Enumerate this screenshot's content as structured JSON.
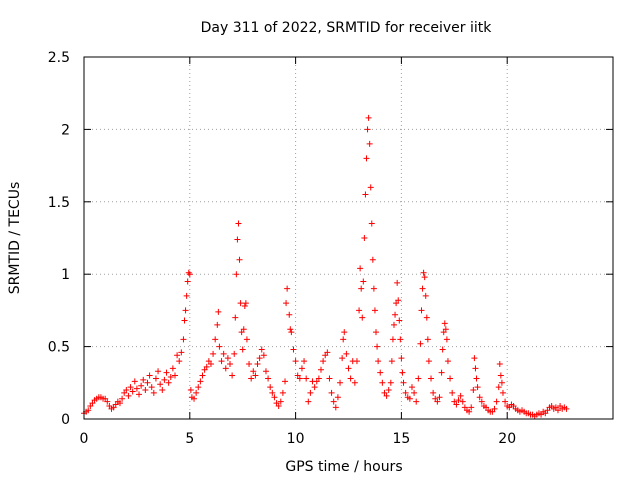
{
  "chart_data": {
    "type": "scatter",
    "title": "Day 311 of 2022, SRMTID for receiver iitk",
    "xlabel": "GPS time / hours",
    "ylabel": "SRMTID / TECUs",
    "xlim": [
      0,
      25
    ],
    "ylim": [
      0,
      2.5
    ],
    "xticks": [
      0,
      5,
      10,
      15,
      20
    ],
    "xtick_labels": [
      "0",
      "5",
      "10",
      "15",
      "20"
    ],
    "yticks": [
      0,
      0.5,
      1,
      1.5,
      2,
      2.5
    ],
    "ytick_labels": [
      "0",
      "0.5",
      "1",
      "1.5",
      "2",
      "2.5"
    ],
    "grid": true,
    "marker": "+",
    "marker_color": "#ff0000",
    "series": [
      {
        "name": "SRMTID",
        "points": [
          [
            0.0,
            0.04
          ],
          [
            0.1,
            0.05
          ],
          [
            0.2,
            0.06
          ],
          [
            0.3,
            0.09
          ],
          [
            0.4,
            0.11
          ],
          [
            0.5,
            0.13
          ],
          [
            0.6,
            0.14
          ],
          [
            0.7,
            0.15
          ],
          [
            0.8,
            0.15
          ],
          [
            0.9,
            0.14
          ],
          [
            1.0,
            0.14
          ],
          [
            1.1,
            0.12
          ],
          [
            1.2,
            0.09
          ],
          [
            1.3,
            0.07
          ],
          [
            1.4,
            0.08
          ],
          [
            1.5,
            0.1
          ],
          [
            1.6,
            0.12
          ],
          [
            1.7,
            0.11
          ],
          [
            1.8,
            0.14
          ],
          [
            1.9,
            0.18
          ],
          [
            2.0,
            0.2
          ],
          [
            2.1,
            0.16
          ],
          [
            2.2,
            0.22
          ],
          [
            2.3,
            0.19
          ],
          [
            2.4,
            0.26
          ],
          [
            2.5,
            0.21
          ],
          [
            2.6,
            0.17
          ],
          [
            2.7,
            0.23
          ],
          [
            2.8,
            0.27
          ],
          [
            2.9,
            0.2
          ],
          [
            3.0,
            0.25
          ],
          [
            3.1,
            0.3
          ],
          [
            3.2,
            0.22
          ],
          [
            3.3,
            0.18
          ],
          [
            3.4,
            0.28
          ],
          [
            3.5,
            0.33
          ],
          [
            3.6,
            0.24
          ],
          [
            3.7,
            0.2
          ],
          [
            3.8,
            0.27
          ],
          [
            3.9,
            0.32
          ],
          [
            4.0,
            0.25
          ],
          [
            4.1,
            0.29
          ],
          [
            4.2,
            0.35
          ],
          [
            4.3,
            0.3
          ],
          [
            4.4,
            0.44
          ],
          [
            4.5,
            0.4
          ],
          [
            4.6,
            0.46
          ],
          [
            4.7,
            0.55
          ],
          [
            4.75,
            0.68
          ],
          [
            4.8,
            0.75
          ],
          [
            4.85,
            0.85
          ],
          [
            4.9,
            0.95
          ],
          [
            4.95,
            1.01
          ],
          [
            5.0,
            1.0
          ],
          [
            5.05,
            0.2
          ],
          [
            5.1,
            0.15
          ],
          [
            5.2,
            0.14
          ],
          [
            5.3,
            0.18
          ],
          [
            5.4,
            0.22
          ],
          [
            5.5,
            0.26
          ],
          [
            5.6,
            0.3
          ],
          [
            5.7,
            0.34
          ],
          [
            5.8,
            0.36
          ],
          [
            5.9,
            0.4
          ],
          [
            6.0,
            0.38
          ],
          [
            6.1,
            0.45
          ],
          [
            6.2,
            0.55
          ],
          [
            6.3,
            0.65
          ],
          [
            6.35,
            0.74
          ],
          [
            6.4,
            0.5
          ],
          [
            6.5,
            0.4
          ],
          [
            6.6,
            0.45
          ],
          [
            6.7,
            0.35
          ],
          [
            6.8,
            0.42
          ],
          [
            6.9,
            0.38
          ],
          [
            7.0,
            0.3
          ],
          [
            7.1,
            0.45
          ],
          [
            7.15,
            0.7
          ],
          [
            7.2,
            1.0
          ],
          [
            7.25,
            1.24
          ],
          [
            7.3,
            1.35
          ],
          [
            7.35,
            1.1
          ],
          [
            7.4,
            0.8
          ],
          [
            7.45,
            0.6
          ],
          [
            7.5,
            0.48
          ],
          [
            7.55,
            0.62
          ],
          [
            7.6,
            0.78
          ],
          [
            7.65,
            0.8
          ],
          [
            7.7,
            0.55
          ],
          [
            7.8,
            0.38
          ],
          [
            7.9,
            0.28
          ],
          [
            8.0,
            0.33
          ],
          [
            8.1,
            0.3
          ],
          [
            8.2,
            0.38
          ],
          [
            8.3,
            0.42
          ],
          [
            8.4,
            0.48
          ],
          [
            8.5,
            0.44
          ],
          [
            8.6,
            0.33
          ],
          [
            8.7,
            0.28
          ],
          [
            8.8,
            0.22
          ],
          [
            8.9,
            0.18
          ],
          [
            9.0,
            0.15
          ],
          [
            9.1,
            0.11
          ],
          [
            9.2,
            0.09
          ],
          [
            9.3,
            0.12
          ],
          [
            9.4,
            0.18
          ],
          [
            9.5,
            0.26
          ],
          [
            9.55,
            0.8
          ],
          [
            9.6,
            0.9
          ],
          [
            9.7,
            0.72
          ],
          [
            9.75,
            0.62
          ],
          [
            9.8,
            0.6
          ],
          [
            9.9,
            0.48
          ],
          [
            10.0,
            0.4
          ],
          [
            10.1,
            0.3
          ],
          [
            10.2,
            0.28
          ],
          [
            10.3,
            0.35
          ],
          [
            10.4,
            0.4
          ],
          [
            10.5,
            0.28
          ],
          [
            10.6,
            0.12
          ],
          [
            10.7,
            0.18
          ],
          [
            10.8,
            0.26
          ],
          [
            10.9,
            0.22
          ],
          [
            11.0,
            0.26
          ],
          [
            11.1,
            0.28
          ],
          [
            11.2,
            0.34
          ],
          [
            11.3,
            0.4
          ],
          [
            11.4,
            0.44
          ],
          [
            11.5,
            0.46
          ],
          [
            11.6,
            0.28
          ],
          [
            11.7,
            0.18
          ],
          [
            11.8,
            0.12
          ],
          [
            11.9,
            0.08
          ],
          [
            12.0,
            0.15
          ],
          [
            12.1,
            0.25
          ],
          [
            12.2,
            0.42
          ],
          [
            12.25,
            0.55
          ],
          [
            12.3,
            0.6
          ],
          [
            12.4,
            0.45
          ],
          [
            12.5,
            0.35
          ],
          [
            12.6,
            0.28
          ],
          [
            12.7,
            0.4
          ],
          [
            12.8,
            0.25
          ],
          [
            12.9,
            0.4
          ],
          [
            13.0,
            0.75
          ],
          [
            13.05,
            1.04
          ],
          [
            13.1,
            0.9
          ],
          [
            13.15,
            0.7
          ],
          [
            13.2,
            0.95
          ],
          [
            13.25,
            1.25
          ],
          [
            13.3,
            1.55
          ],
          [
            13.35,
            1.8
          ],
          [
            13.4,
            2.0
          ],
          [
            13.45,
            2.08
          ],
          [
            13.5,
            1.9
          ],
          [
            13.55,
            1.6
          ],
          [
            13.6,
            1.35
          ],
          [
            13.65,
            1.1
          ],
          [
            13.7,
            0.9
          ],
          [
            13.75,
            0.75
          ],
          [
            13.8,
            0.6
          ],
          [
            13.85,
            0.5
          ],
          [
            13.9,
            0.4
          ],
          [
            14.0,
            0.32
          ],
          [
            14.1,
            0.25
          ],
          [
            14.2,
            0.18
          ],
          [
            14.3,
            0.16
          ],
          [
            14.4,
            0.2
          ],
          [
            14.5,
            0.25
          ],
          [
            14.55,
            0.4
          ],
          [
            14.6,
            0.55
          ],
          [
            14.65,
            0.65
          ],
          [
            14.7,
            0.72
          ],
          [
            14.75,
            0.8
          ],
          [
            14.8,
            0.94
          ],
          [
            14.85,
            0.82
          ],
          [
            14.9,
            0.68
          ],
          [
            14.95,
            0.55
          ],
          [
            15.0,
            0.42
          ],
          [
            15.05,
            0.32
          ],
          [
            15.1,
            0.25
          ],
          [
            15.2,
            0.18
          ],
          [
            15.3,
            0.15
          ],
          [
            15.4,
            0.14
          ],
          [
            15.5,
            0.22
          ],
          [
            15.6,
            0.18
          ],
          [
            15.7,
            0.12
          ],
          [
            15.8,
            0.28
          ],
          [
            15.9,
            0.52
          ],
          [
            15.95,
            0.75
          ],
          [
            16.0,
            0.9
          ],
          [
            16.05,
            1.01
          ],
          [
            16.1,
            0.98
          ],
          [
            16.15,
            0.85
          ],
          [
            16.2,
            0.7
          ],
          [
            16.25,
            0.55
          ],
          [
            16.3,
            0.4
          ],
          [
            16.4,
            0.28
          ],
          [
            16.5,
            0.18
          ],
          [
            16.6,
            0.14
          ],
          [
            16.7,
            0.12
          ],
          [
            16.8,
            0.15
          ],
          [
            16.9,
            0.32
          ],
          [
            16.95,
            0.48
          ],
          [
            17.0,
            0.6
          ],
          [
            17.05,
            0.66
          ],
          [
            17.1,
            0.62
          ],
          [
            17.15,
            0.55
          ],
          [
            17.2,
            0.4
          ],
          [
            17.3,
            0.28
          ],
          [
            17.4,
            0.18
          ],
          [
            17.5,
            0.12
          ],
          [
            17.6,
            0.1
          ],
          [
            17.7,
            0.13
          ],
          [
            17.8,
            0.16
          ],
          [
            17.9,
            0.12
          ],
          [
            18.0,
            0.08
          ],
          [
            18.1,
            0.06
          ],
          [
            18.2,
            0.05
          ],
          [
            18.3,
            0.08
          ],
          [
            18.4,
            0.2
          ],
          [
            18.45,
            0.42
          ],
          [
            18.5,
            0.35
          ],
          [
            18.55,
            0.28
          ],
          [
            18.6,
            0.22
          ],
          [
            18.7,
            0.15
          ],
          [
            18.8,
            0.12
          ],
          [
            18.9,
            0.09
          ],
          [
            19.0,
            0.08
          ],
          [
            19.1,
            0.06
          ],
          [
            19.2,
            0.05
          ],
          [
            19.3,
            0.05
          ],
          [
            19.4,
            0.07
          ],
          [
            19.5,
            0.12
          ],
          [
            19.6,
            0.22
          ],
          [
            19.65,
            0.38
          ],
          [
            19.7,
            0.3
          ],
          [
            19.75,
            0.25
          ],
          [
            19.8,
            0.18
          ],
          [
            19.9,
            0.12
          ],
          [
            20.0,
            0.09
          ],
          [
            20.1,
            0.08
          ],
          [
            20.2,
            0.1
          ],
          [
            20.3,
            0.09
          ],
          [
            20.4,
            0.07
          ],
          [
            20.5,
            0.06
          ],
          [
            20.6,
            0.05
          ],
          [
            20.7,
            0.06
          ],
          [
            20.8,
            0.05
          ],
          [
            20.9,
            0.04
          ],
          [
            21.0,
            0.04
          ],
          [
            21.1,
            0.03
          ],
          [
            21.2,
            0.03
          ],
          [
            21.3,
            0.02
          ],
          [
            21.4,
            0.03
          ],
          [
            21.5,
            0.04
          ],
          [
            21.6,
            0.03
          ],
          [
            21.7,
            0.05
          ],
          [
            21.8,
            0.04
          ],
          [
            21.9,
            0.06
          ],
          [
            22.0,
            0.08
          ],
          [
            22.1,
            0.09
          ],
          [
            22.2,
            0.07
          ],
          [
            22.3,
            0.08
          ],
          [
            22.4,
            0.06
          ],
          [
            22.5,
            0.09
          ],
          [
            22.6,
            0.07
          ],
          [
            22.7,
            0.08
          ],
          [
            22.8,
            0.07
          ]
        ]
      }
    ]
  }
}
